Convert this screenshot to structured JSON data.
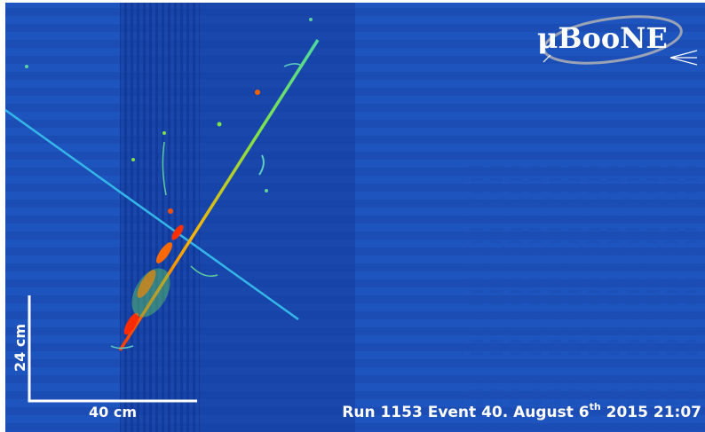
{
  "logo": "μBooNE",
  "scale_bar": {
    "vertical_label": "24 cm",
    "horizontal_label": "40 cm"
  },
  "caption": {
    "text": "Run 1153 Event 40. August 6",
    "superscript": "th",
    "rest": " 2015 21:07"
  }
}
